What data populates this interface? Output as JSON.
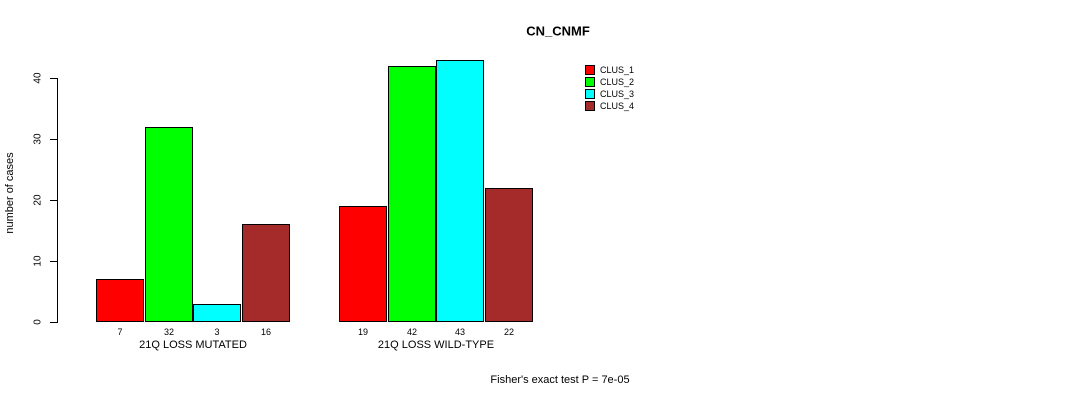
{
  "title": "CN_CNMF",
  "y_axis": {
    "label": "number of cases",
    "ticks": [
      0,
      10,
      20,
      30,
      40
    ]
  },
  "legend": {
    "items": [
      {
        "label": "CLUS_1",
        "color": "#FF0000"
      },
      {
        "label": "CLUS_2",
        "color": "#00FF00"
      },
      {
        "label": "CLUS_3",
        "color": "#00FFFF"
      },
      {
        "label": "CLUS_4",
        "color": "#A52A2A"
      }
    ]
  },
  "footer": "Fisher's exact test P = 7e-05",
  "chart_data": {
    "type": "bar",
    "title": "CN_CNMF",
    "ylabel": "number of cases",
    "categories": [
      "21Q LOSS MUTATED",
      "21Q LOSS WILD-TYPE"
    ],
    "series": [
      {
        "name": "CLUS_1",
        "color": "#FF0000",
        "values": [
          7,
          19
        ]
      },
      {
        "name": "CLUS_2",
        "color": "#00FF00",
        "values": [
          32,
          42
        ]
      },
      {
        "name": "CLUS_3",
        "color": "#00FFFF",
        "values": [
          3,
          43
        ]
      },
      {
        "name": "CLUS_4",
        "color": "#A52A2A",
        "values": [
          16,
          22
        ]
      }
    ],
    "bar_value_labels": true,
    "ylim": [
      0,
      43
    ],
    "yticks": [
      0,
      10,
      20,
      30,
      40
    ],
    "grid": false,
    "legend_position": "top-right",
    "annotation": "Fisher's exact test P = 7e-05"
  }
}
